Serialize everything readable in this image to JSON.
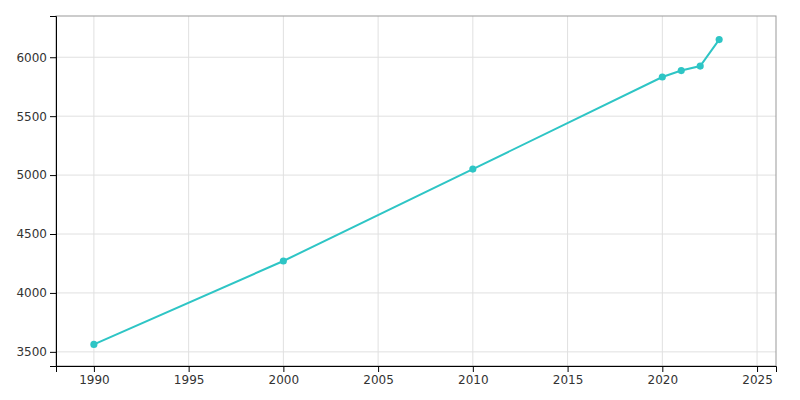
{
  "chart_data": {
    "type": "line",
    "x": [
      1990,
      2000,
      2010,
      2020,
      2021,
      2022,
      2023
    ],
    "values": [
      3563,
      4271,
      5051,
      5832,
      5887,
      5925,
      6150
    ],
    "color": "#2ec5c5",
    "marker": "circle",
    "xlim": [
      1988,
      2026
    ],
    "ylim": [
      3380,
      6350
    ],
    "xticks": [
      1990,
      1995,
      2000,
      2005,
      2010,
      2015,
      2020,
      2025
    ],
    "yticks": [
      3500,
      4000,
      4500,
      5000,
      5500,
      6000
    ],
    "grid": true
  }
}
